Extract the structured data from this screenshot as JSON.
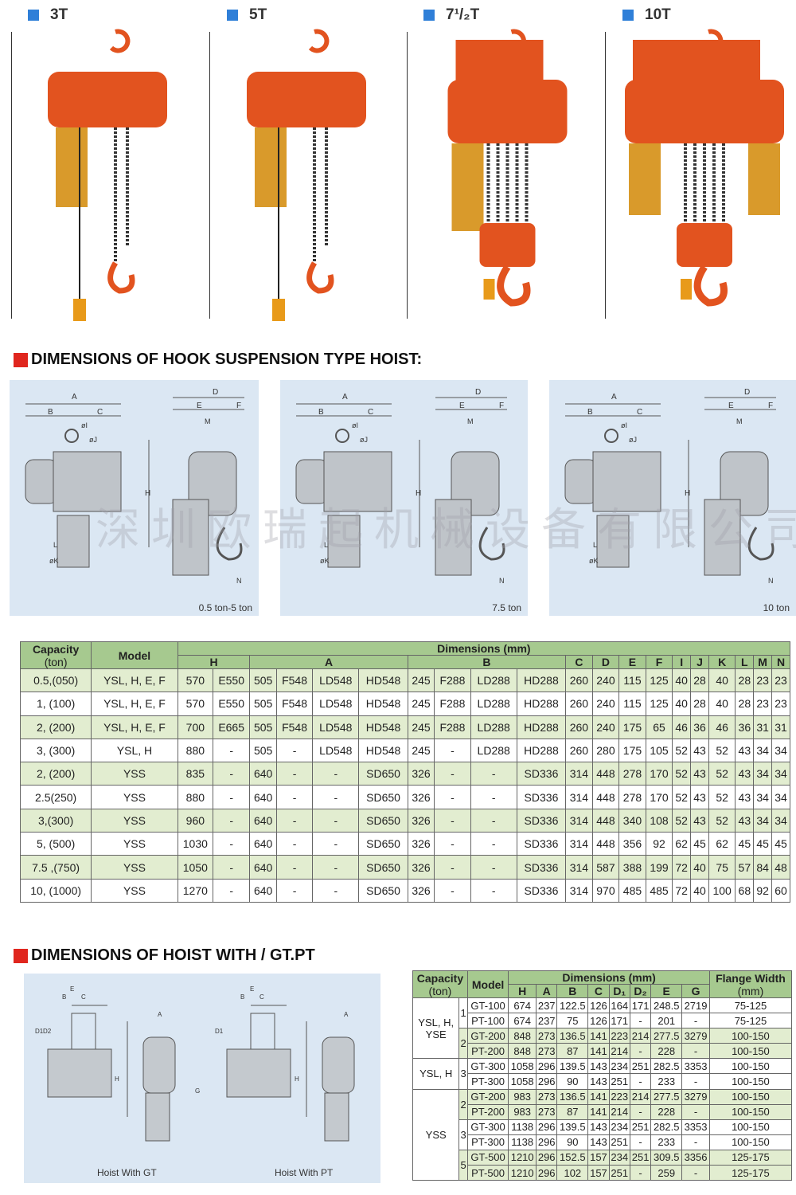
{
  "products": [
    {
      "label": "3T"
    },
    {
      "label": "5T"
    },
    {
      "label": "7¹/₂T"
    },
    {
      "label": "10T"
    }
  ],
  "colors": {
    "accent_blue": "#2f7fd8",
    "heading_red": "#e0261e",
    "hoist_orange": "#e2531f",
    "table_header_green": "#a6c98f",
    "row_green": "#e2edd0",
    "diagram_bg": "#dbe7f3"
  },
  "section1": {
    "title": "DIMENSIONS OF HOOK SUSPENSION TYPE HOIST:"
  },
  "section2": {
    "title": "DIMENSIONS OF HOIST WITH / GT.PT"
  },
  "watermark": "深圳欧瑞起机械设备有限公司",
  "diagrams": [
    {
      "caption": "0.5 ton-5 ton",
      "labels": {
        "A": "A",
        "B": "B",
        "C": "C",
        "D": "D",
        "E": "E",
        "F": "F",
        "H": "H",
        "I": "øI",
        "J": "øJ",
        "K": "øK",
        "L": "L",
        "M": "M",
        "N": "N"
      }
    },
    {
      "caption": "7.5 ton",
      "labels": {
        "A": "A",
        "B": "B",
        "C": "C",
        "D": "D",
        "E": "E",
        "F": "F",
        "H": "H",
        "I": "øI",
        "J": "øJ",
        "K": "øK",
        "L": "L",
        "M": "M",
        "N": "N"
      }
    },
    {
      "caption": "10 ton",
      "labels": {
        "A": "A",
        "B": "B",
        "C": "C",
        "D": "D",
        "E": "E",
        "F": "F",
        "H": "H",
        "I": "øI",
        "J": "øJ",
        "K": "øK",
        "L": "L",
        "M": "M",
        "N": "N"
      }
    }
  ],
  "gt_diagram": {
    "caption_gt": "Hoist With GT",
    "caption_pt": "Hoist With PT",
    "labels": [
      "E",
      "B",
      "C",
      "D1",
      "D2",
      "A",
      "H",
      "G",
      "E",
      "B",
      "C",
      "D1",
      "A",
      "H"
    ]
  },
  "table1": {
    "capacity_header": "Capacity",
    "capacity_unit": "(ton)",
    "model_header": "Model",
    "dims_header": "Dimensions (mm)",
    "groups": [
      {
        "label": "H",
        "span": 2
      },
      {
        "label": "A",
        "span": 4
      },
      {
        "label": "B",
        "span": 4
      },
      {
        "label": "C",
        "span": 1
      },
      {
        "label": "D",
        "span": 1
      },
      {
        "label": "E",
        "span": 1
      },
      {
        "label": "F",
        "span": 1
      },
      {
        "label": "I",
        "span": 1
      },
      {
        "label": "J",
        "span": 1
      },
      {
        "label": "K",
        "span": 1
      },
      {
        "label": "L",
        "span": 1
      },
      {
        "label": "M",
        "span": 1
      },
      {
        "label": "N",
        "span": 1
      }
    ],
    "rows": [
      [
        "0.5,(050)",
        "YSL, H, E, F",
        "570",
        "E550",
        "505",
        "F548",
        "LD548",
        "HD548",
        "245",
        "F288",
        "LD288",
        "HD288",
        "260",
        "240",
        "115",
        "125",
        "40",
        "28",
        "40",
        "28",
        "23",
        "23"
      ],
      [
        "1, (100)",
        "YSL, H, E, F",
        "570",
        "E550",
        "505",
        "F548",
        "LD548",
        "HD548",
        "245",
        "F288",
        "LD288",
        "HD288",
        "260",
        "240",
        "115",
        "125",
        "40",
        "28",
        "40",
        "28",
        "23",
        "23"
      ],
      [
        "2, (200)",
        "YSL, H, E, F",
        "700",
        "E665",
        "505",
        "F548",
        "LD548",
        "HD548",
        "245",
        "F288",
        "LD288",
        "HD288",
        "260",
        "240",
        "175",
        "65",
        "46",
        "36",
        "46",
        "36",
        "31",
        "31"
      ],
      [
        "3, (300)",
        "YSL, H",
        "880",
        "-",
        "505",
        "-",
        "LD548",
        "HD548",
        "245",
        "-",
        "LD288",
        "HD288",
        "260",
        "280",
        "175",
        "105",
        "52",
        "43",
        "52",
        "43",
        "34",
        "34"
      ],
      [
        "2, (200)",
        "YSS",
        "835",
        "-",
        "640",
        "-",
        "-",
        "SD650",
        "326",
        "-",
        "-",
        "SD336",
        "314",
        "448",
        "278",
        "170",
        "52",
        "43",
        "52",
        "43",
        "34",
        "34"
      ],
      [
        "2.5(250)",
        "YSS",
        "880",
        "-",
        "640",
        "-",
        "-",
        "SD650",
        "326",
        "-",
        "-",
        "SD336",
        "314",
        "448",
        "278",
        "170",
        "52",
        "43",
        "52",
        "43",
        "34",
        "34"
      ],
      [
        "3,(300)",
        "YSS",
        "960",
        "-",
        "640",
        "-",
        "-",
        "SD650",
        "326",
        "-",
        "-",
        "SD336",
        "314",
        "448",
        "340",
        "108",
        "52",
        "43",
        "52",
        "43",
        "34",
        "34"
      ],
      [
        "5, (500)",
        "YSS",
        "1030",
        "-",
        "640",
        "-",
        "-",
        "SD650",
        "326",
        "-",
        "-",
        "SD336",
        "314",
        "448",
        "356",
        "92",
        "62",
        "45",
        "62",
        "45",
        "45",
        "45"
      ],
      [
        "7.5 ,(750)",
        "YSS",
        "1050",
        "-",
        "640",
        "-",
        "-",
        "SD650",
        "326",
        "-",
        "-",
        "SD336",
        "314",
        "587",
        "388",
        "199",
        "72",
        "40",
        "75",
        "57",
        "84",
        "48"
      ],
      [
        "10, (1000)",
        "YSS",
        "1270",
        "-",
        "640",
        "-",
        "-",
        "SD650",
        "326",
        "-",
        "-",
        "SD336",
        "314",
        "970",
        "485",
        "485",
        "72",
        "40",
        "100",
        "68",
        "92",
        "60"
      ]
    ]
  },
  "table2": {
    "capacity_header": "Capacity",
    "capacity_unit": "(ton)",
    "model_header": "Model",
    "dims_header": "Dimensions (mm)",
    "flange_header": "Flange Width",
    "flange_unit": "(mm)",
    "columns": [
      "H",
      "A",
      "B",
      "C",
      "D₁",
      "D₂",
      "E",
      "G"
    ],
    "series_groups": [
      {
        "label": "YSL, H,\nYSE",
        "rows": 4
      },
      {
        "label": "YSL, H",
        "rows": 2
      },
      {
        "label": "YSS",
        "rows": 6
      }
    ],
    "capacities": [
      {
        "value": "1",
        "rows": 2
      },
      {
        "value": "2",
        "rows": 2
      },
      {
        "value": "3",
        "rows": 2
      },
      {
        "value": "2",
        "rows": 2
      },
      {
        "value": "3",
        "rows": 2
      },
      {
        "value": "5",
        "rows": 2
      }
    ],
    "rows": [
      [
        "GT-100",
        "674",
        "237",
        "122.5",
        "126",
        "164",
        "171",
        "248.5",
        "2719",
        "75-125"
      ],
      [
        "PT-100",
        "674",
        "237",
        "75",
        "126",
        "171",
        "-",
        "201",
        "-",
        "75-125"
      ],
      [
        "GT-200",
        "848",
        "273",
        "136.5",
        "141",
        "223",
        "214",
        "277.5",
        "3279",
        "100-150"
      ],
      [
        "PT-200",
        "848",
        "273",
        "87",
        "141",
        "214",
        "-",
        "228",
        "-",
        "100-150"
      ],
      [
        "GT-300",
        "1058",
        "296",
        "139.5",
        "143",
        "234",
        "251",
        "282.5",
        "3353",
        "100-150"
      ],
      [
        "PT-300",
        "1058",
        "296",
        "90",
        "143",
        "251",
        "-",
        "233",
        "-",
        "100-150"
      ],
      [
        "GT-200",
        "983",
        "273",
        "136.5",
        "141",
        "223",
        "214",
        "277.5",
        "3279",
        "100-150"
      ],
      [
        "PT-200",
        "983",
        "273",
        "87",
        "141",
        "214",
        "-",
        "228",
        "-",
        "100-150"
      ],
      [
        "GT-300",
        "1138",
        "296",
        "139.5",
        "143",
        "234",
        "251",
        "282.5",
        "3353",
        "100-150"
      ],
      [
        "PT-300",
        "1138",
        "296",
        "90",
        "143",
        "251",
        "-",
        "233",
        "-",
        "100-150"
      ],
      [
        "GT-500",
        "1210",
        "296",
        "152.5",
        "157",
        "234",
        "251",
        "309.5",
        "3356",
        "125-175"
      ],
      [
        "PT-500",
        "1210",
        "296",
        "102",
        "157",
        "251",
        "-",
        "259",
        "-",
        "125-175"
      ]
    ]
  }
}
